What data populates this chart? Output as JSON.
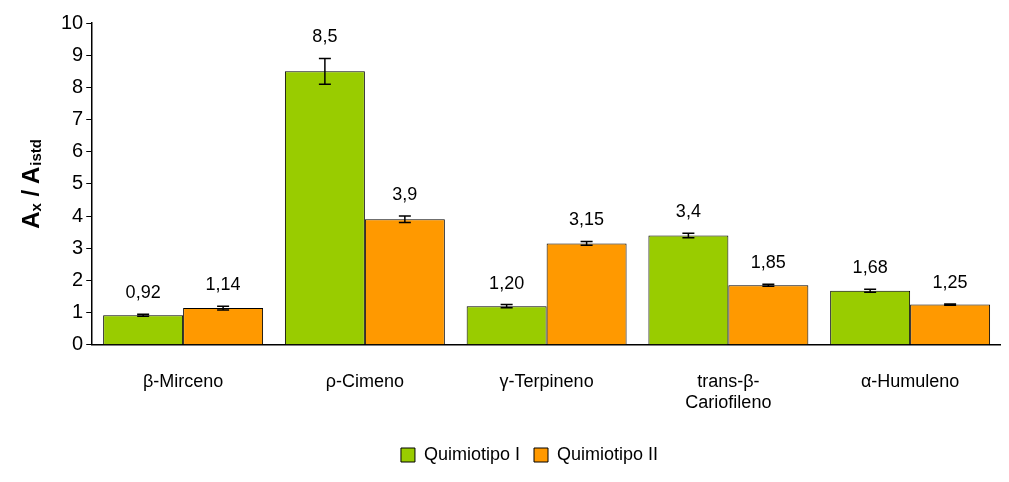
{
  "chart_data": {
    "type": "bar",
    "ylabel": "A$_{x}$ / A$_{istd}$",
    "categories": [
      "β-Mirceno",
      "ρ-Cimeno",
      "γ-Terpineno",
      "trans-β-Cariofileno",
      "α-Humuleno"
    ],
    "series": [
      {
        "name": "Quimiotipo I",
        "color": "#99cc00",
        "values": [
          0.92,
          8.5,
          1.2,
          3.4,
          1.68
        ],
        "errors": [
          0.03,
          0.4,
          0.05,
          0.07,
          0.05
        ],
        "value_labels": [
          "0,92",
          "8,5",
          "1,20",
          "3,4",
          "1,68"
        ]
      },
      {
        "name": "Quimiotipo II",
        "color": "#ff9900",
        "values": [
          1.14,
          3.9,
          3.15,
          1.85,
          1.25
        ],
        "errors": [
          0.06,
          0.1,
          0.06,
          0.03,
          0.02
        ],
        "value_labels": [
          "1,14",
          "3,9",
          "3,15",
          "1,85",
          "1,25"
        ]
      }
    ],
    "ylim": [
      0,
      10
    ],
    "yticks": [
      0,
      1,
      2,
      3,
      4,
      5,
      6,
      7,
      8,
      9,
      10
    ],
    "grid": false,
    "legend": "bottom"
  }
}
